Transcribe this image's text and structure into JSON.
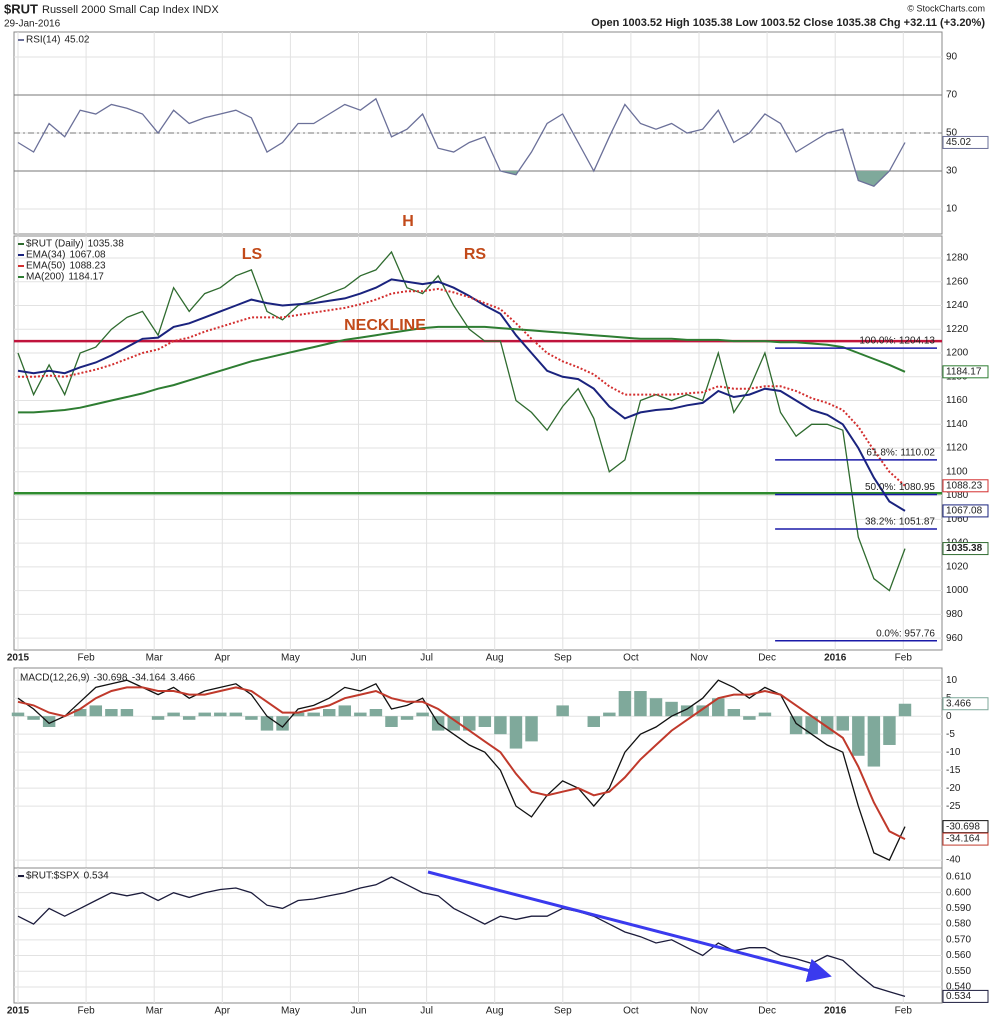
{
  "header": {
    "symbol": "$RUT",
    "name": "Russell 2000 Small Cap Index INDX",
    "date": "29-Jan-2016",
    "copyright": "© StockCharts.com",
    "quote": "Open 1003.52  High 1035.38  Low 1003.52  Close 1035.38  Chg +32.11 (+3.20%)"
  },
  "chart_data": [
    {
      "type": "line",
      "ylim": [
        -3.2,
        103.2
      ],
      "yticks": [
        10,
        30,
        50,
        70,
        90
      ],
      "hlines": [
        {
          "value": 70
        },
        {
          "value": 50,
          "dash": true
        },
        {
          "value": 30
        }
      ],
      "fill_below": 30,
      "series": [
        {
          "name": "RSI(14)",
          "color": "#6b7099",
          "values": [
            45,
            40,
            55,
            48,
            62,
            60,
            65,
            63,
            60,
            50,
            62,
            55,
            58,
            60,
            62,
            58,
            40,
            45,
            55,
            55,
            60,
            65,
            62,
            68,
            48,
            52,
            60,
            42,
            40,
            45,
            48,
            30,
            28,
            40,
            55,
            60,
            45,
            30,
            48,
            65,
            55,
            52,
            55,
            50,
            52,
            62,
            45,
            50,
            60,
            55,
            40,
            45,
            50,
            52,
            25,
            22,
            30,
            45.02
          ]
        }
      ]
    },
    {
      "type": "line",
      "ylim": [
        950,
        1298.5
      ],
      "yticks": [
        960,
        980,
        1000,
        1020,
        1040,
        1060,
        1080,
        1100,
        1120,
        1140,
        1160,
        1180,
        1200,
        1220,
        1240,
        1260,
        1280
      ],
      "xticks": [
        "2015",
        "Feb",
        "Mar",
        "Apr",
        "May",
        "Jun",
        "Jul",
        "Aug",
        "Sep",
        "Oct",
        "Nov",
        "Dec",
        "2016",
        "Feb"
      ],
      "hlines": [
        {
          "value": 1210,
          "color": "#c0143c"
        },
        {
          "value": 1082,
          "color": "#2e8b2e"
        }
      ],
      "fib": [
        {
          "label": "100.0%: 1204.13",
          "value": 1204.13
        },
        {
          "label": "61.8%: 1110.02",
          "value": 1110.02
        },
        {
          "label": "50.0%: 1080.95",
          "value": 1080.95
        },
        {
          "label": "38.2%: 1051.87",
          "value": 1051.87
        },
        {
          "label": "0.0%: 957.76",
          "value": 957.76
        }
      ],
      "annotations": [
        "LS",
        "H",
        "RS",
        "NECKLINE"
      ],
      "series": [
        {
          "name": "$RUT (Daily)",
          "color": "#2f6b2f",
          "values": [
            1200,
            1165,
            1190,
            1165,
            1200,
            1205,
            1220,
            1230,
            1235,
            1215,
            1255,
            1235,
            1250,
            1255,
            1265,
            1270,
            1235,
            1228,
            1240,
            1245,
            1250,
            1255,
            1265,
            1270,
            1285,
            1255,
            1250,
            1265,
            1240,
            1220,
            1210,
            1210,
            1160,
            1150,
            1135,
            1155,
            1170,
            1145,
            1100,
            1110,
            1160,
            1165,
            1160,
            1165,
            1160,
            1200,
            1150,
            1170,
            1200,
            1150,
            1130,
            1140,
            1140,
            1135,
            1045,
            1010,
            1000,
            1035.38
          ]
        },
        {
          "name": "EMA(34)",
          "color": "#1a237e",
          "values": [
            1185,
            1183,
            1185,
            1183,
            1188,
            1192,
            1198,
            1205,
            1212,
            1213,
            1222,
            1225,
            1230,
            1235,
            1240,
            1245,
            1242,
            1240,
            1241,
            1242,
            1244,
            1246,
            1250,
            1255,
            1262,
            1260,
            1258,
            1260,
            1255,
            1248,
            1240,
            1233,
            1215,
            1200,
            1185,
            1180,
            1178,
            1170,
            1155,
            1145,
            1150,
            1152,
            1153,
            1156,
            1158,
            1168,
            1163,
            1165,
            1170,
            1168,
            1160,
            1152,
            1148,
            1140,
            1120,
            1095,
            1075,
            1067.08
          ]
        },
        {
          "name": "EMA(50)",
          "color": "#d32f2f",
          "dash": true,
          "values": [
            1180,
            1180,
            1181,
            1180,
            1183,
            1186,
            1190,
            1195,
            1200,
            1203,
            1210,
            1213,
            1218,
            1222,
            1226,
            1230,
            1230,
            1230,
            1232,
            1234,
            1236,
            1238,
            1241,
            1245,
            1250,
            1252,
            1252,
            1254,
            1251,
            1247,
            1242,
            1237,
            1225,
            1212,
            1200,
            1193,
            1188,
            1182,
            1172,
            1165,
            1165,
            1165,
            1165,
            1166,
            1167,
            1172,
            1170,
            1170,
            1172,
            1172,
            1168,
            1162,
            1158,
            1152,
            1138,
            1118,
            1100,
            1088.23
          ]
        },
        {
          "name": "MA(200)",
          "color": "#2e7d32",
          "values": [
            1150,
            1150,
            1151,
            1152,
            1154,
            1157,
            1160,
            1163,
            1166,
            1170,
            1173,
            1177,
            1181,
            1185,
            1189,
            1193,
            1196,
            1199,
            1202,
            1205,
            1208,
            1211,
            1213,
            1215,
            1217,
            1219,
            1221,
            1222,
            1222,
            1222,
            1222,
            1221,
            1220,
            1219,
            1218,
            1217,
            1216,
            1215,
            1214,
            1213,
            1212,
            1212,
            1212,
            1211,
            1211,
            1211,
            1210,
            1210,
            1210,
            1209,
            1209,
            1208,
            1207,
            1205,
            1200,
            1195,
            1190,
            1184.17
          ]
        }
      ]
    },
    {
      "type": "line",
      "title": "MACD(12,26,9)",
      "ylim": [
        -42.2,
        13.4
      ],
      "yticks": [
        10,
        5,
        0,
        -5,
        -10,
        -15,
        -20,
        -25,
        -40
      ],
      "series": [
        {
          "color": "#111111",
          "values": [
            5,
            2,
            -2,
            0,
            4,
            8,
            9,
            10,
            8,
            6,
            8,
            5,
            7,
            8,
            9,
            6,
            0,
            -3,
            2,
            3,
            5,
            8,
            7,
            9,
            2,
            3,
            5,
            -2,
            -5,
            -8,
            -10,
            -15,
            -25,
            -28,
            -22,
            -18,
            -20,
            -25,
            -20,
            -10,
            -5,
            -3,
            0,
            2,
            5,
            10,
            8,
            5,
            8,
            6,
            -2,
            -5,
            -8,
            -10,
            -25,
            -38,
            -40,
            -30.698
          ]
        },
        {
          "color": "#c0392b",
          "values": [
            4,
            3,
            1,
            0,
            2,
            5,
            7,
            8,
            8,
            7,
            7,
            6,
            6,
            7,
            8,
            7,
            4,
            1,
            1,
            2,
            3,
            5,
            6,
            7,
            5,
            4,
            4,
            2,
            -1,
            -4,
            -7,
            -10,
            -16,
            -21,
            -22,
            -21,
            -20,
            -22,
            -21,
            -17,
            -12,
            -8,
            -4,
            -1,
            2,
            5,
            6,
            6,
            7,
            6,
            3,
            0,
            -3,
            -6,
            -14,
            -24,
            -32,
            -34.164
          ]
        },
        {
          "type": "bar",
          "color": "#7fa99b",
          "values": [
            1,
            -1,
            -3,
            0,
            2,
            3,
            2,
            2,
            0,
            -1,
            1,
            -1,
            1,
            1,
            1,
            -1,
            -4,
            -4,
            1,
            1,
            2,
            3,
            1,
            2,
            -3,
            -1,
            1,
            -4,
            -4,
            -4,
            -3,
            -5,
            -9,
            -7,
            0,
            3,
            0,
            -3,
            1,
            7,
            7,
            5,
            4,
            3,
            3,
            5,
            2,
            -1,
            1,
            0,
            -5,
            -5,
            -5,
            -4,
            -11,
            -14,
            -8,
            3.466
          ]
        }
      ]
    },
    {
      "type": "line",
      "ylim": [
        0.5298,
        0.6157
      ],
      "yticks": [
        {
          "value": 0.54,
          "label": "0.540"
        },
        {
          "value": 0.55,
          "label": "0.550"
        },
        {
          "value": 0.56,
          "label": "0.560"
        },
        {
          "value": 0.57,
          "label": "0.570"
        },
        {
          "value": 0.58,
          "label": "0.580"
        },
        {
          "value": 0.59,
          "label": "0.590"
        },
        {
          "value": 0.6,
          "label": "0.600"
        },
        {
          "value": 0.61,
          "label": "0.610"
        }
      ],
      "series": [
        {
          "name": "$RUT:$SPX",
          "color": "#1c1c3c",
          "values": [
            0.585,
            0.58,
            0.59,
            0.585,
            0.59,
            0.595,
            0.6,
            0.598,
            0.6,
            0.595,
            0.6,
            0.597,
            0.6,
            0.602,
            0.603,
            0.6,
            0.592,
            0.59,
            0.595,
            0.596,
            0.598,
            0.6,
            0.603,
            0.605,
            0.61,
            0.605,
            0.6,
            0.598,
            0.59,
            0.585,
            0.58,
            0.585,
            0.583,
            0.585,
            0.585,
            0.59,
            0.588,
            0.585,
            0.58,
            0.575,
            0.572,
            0.568,
            0.57,
            0.565,
            0.56,
            0.568,
            0.563,
            0.565,
            0.565,
            0.56,
            0.558,
            0.555,
            0.56,
            0.557,
            0.548,
            0.54,
            0.537,
            0.534
          ]
        }
      ]
    }
  ]
}
